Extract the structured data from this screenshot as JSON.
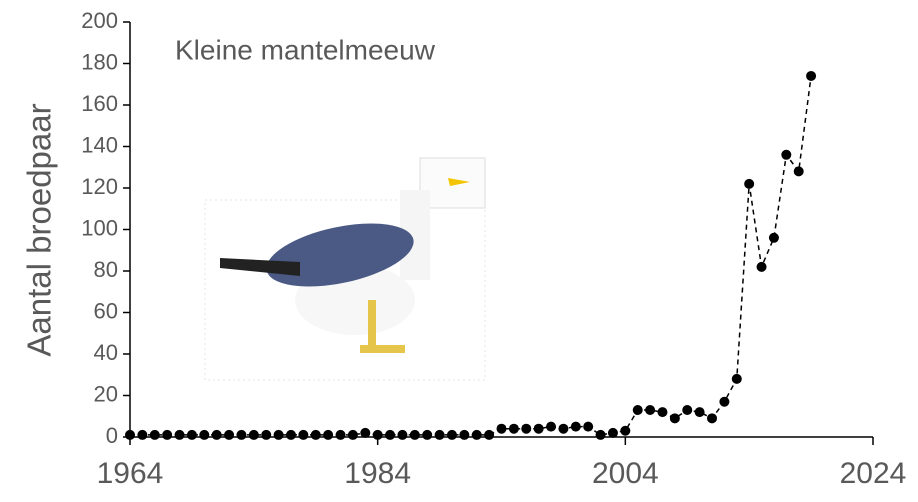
{
  "chart_data": {
    "type": "line",
    "title": "Kleine mantelmeeuw",
    "y_label": "Aantal broedpaar",
    "x": [
      1964,
      1965,
      1966,
      1967,
      1968,
      1969,
      1970,
      1971,
      1972,
      1973,
      1974,
      1975,
      1976,
      1977,
      1978,
      1979,
      1980,
      1981,
      1982,
      1983,
      1984,
      1985,
      1986,
      1987,
      1988,
      1989,
      1990,
      1991,
      1992,
      1993,
      1994,
      1995,
      1996,
      1997,
      1998,
      1999,
      2000,
      2001,
      2002,
      2003,
      2004,
      2005,
      2006,
      2007,
      2008,
      2009,
      2010,
      2011,
      2012,
      2013,
      2014,
      2015,
      2016,
      2017,
      2018,
      2019
    ],
    "series": [
      {
        "name": "Aantal broedpaar",
        "color": "#000000",
        "values": [
          1,
          1,
          1,
          1,
          1,
          1,
          1,
          1,
          1,
          1,
          1,
          1,
          1,
          1,
          1,
          1,
          1,
          1,
          1,
          2,
          1,
          1,
          1,
          1,
          1,
          1,
          1,
          1,
          1,
          1,
          4,
          4,
          4,
          4,
          5,
          4,
          5,
          5,
          1,
          2,
          3,
          13,
          13,
          12,
          9,
          13,
          12,
          9,
          17,
          28,
          122,
          82,
          96,
          136,
          128,
          174
        ]
      }
    ],
    "xlim": [
      1964,
      2024
    ],
    "xticks": [
      1964,
      1984,
      2004,
      2024
    ],
    "ylim": [
      0,
      200
    ],
    "yticks": [
      0,
      20,
      40,
      60,
      80,
      100,
      120,
      140,
      160,
      180,
      200
    ]
  }
}
